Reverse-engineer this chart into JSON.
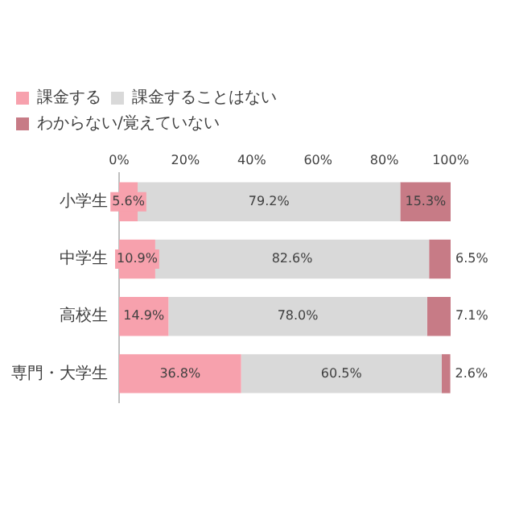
{
  "chart_data": {
    "type": "bar",
    "orientation": "horizontal",
    "stacked": true,
    "categories": [
      "小学生",
      "中学生",
      "高校生",
      "専門・大学生"
    ],
    "series": [
      {
        "name": "課金する",
        "color": "#f7a1ad",
        "values": [
          5.6,
          10.9,
          14.9,
          36.8
        ],
        "value_labels": [
          "5.6%",
          "10.9%",
          "14.9%",
          "36.8%"
        ]
      },
      {
        "name": "課金することはない",
        "color": "#d9d9d9",
        "values": [
          79.2,
          82.6,
          78.0,
          60.5
        ],
        "value_labels": [
          "79.2%",
          "82.6%",
          "78.0%",
          "60.5%"
        ]
      },
      {
        "name": "わからない/覚えていない",
        "color": "#c77b86",
        "values": [
          15.3,
          6.5,
          7.1,
          2.6
        ],
        "value_labels": [
          "15.3%",
          "6.5%",
          "7.1%",
          "2.6%"
        ]
      }
    ],
    "xlim": [
      0,
      100
    ],
    "xticks": [
      {
        "value": 0,
        "label": "0%"
      },
      {
        "value": 20,
        "label": "20%"
      },
      {
        "value": 40,
        "label": "40%"
      },
      {
        "value": 60,
        "label": "60%"
      },
      {
        "value": 80,
        "label": "80%"
      },
      {
        "value": 100,
        "label": "100%"
      }
    ],
    "legend": "top left",
    "grid": false
  }
}
